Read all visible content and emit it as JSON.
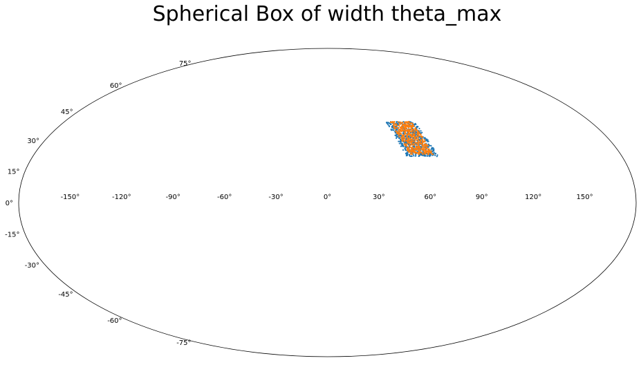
{
  "chart_data": {
    "type": "scatter",
    "title": "Spherical Box of width theta_max",
    "projection": "mollweide",
    "grid": false,
    "legend": "none",
    "xlabel": "",
    "ylabel": "",
    "xlim": [
      -180,
      180
    ],
    "ylim": [
      -90,
      90
    ],
    "x_ticks": [
      -150,
      -120,
      -90,
      -60,
      -30,
      0,
      30,
      60,
      90,
      120,
      150
    ],
    "y_ticks": [
      -75,
      -60,
      -45,
      -30,
      -15,
      0,
      15,
      30,
      45,
      60,
      75
    ],
    "x_tick_labels": [
      "-150°",
      "-120°",
      "-90°",
      "-60°",
      "-30°",
      "0°",
      "30°",
      "60°",
      "90°",
      "120°",
      "150°"
    ],
    "y_tick_labels": [
      "-75°",
      "-60°",
      "-45°",
      "-30°",
      "-15°",
      "0°",
      "15°",
      "30°",
      "45°",
      "60°",
      "75°"
    ],
    "series": [
      {
        "color": "#1f77b4",
        "box": {
          "center_lon": 53,
          "center_lat": 30,
          "corners": [
            [
              40,
              39.5
            ],
            [
              59.5,
              39.5
            ],
            [
              68,
              22
            ],
            [
              48.5,
              22
            ]
          ]
        },
        "n_points": 600,
        "seed": 7
      },
      {
        "color": "#ff7f0e",
        "box": {
          "center_lon": 53,
          "center_lat": 30.5,
          "corners": [
            [
              42.5,
              39.5
            ],
            [
              57.5,
              39.5
            ],
            [
              65.5,
              23
            ],
            [
              50.5,
              23
            ]
          ]
        },
        "n_points": 520,
        "seed": 19
      }
    ]
  }
}
